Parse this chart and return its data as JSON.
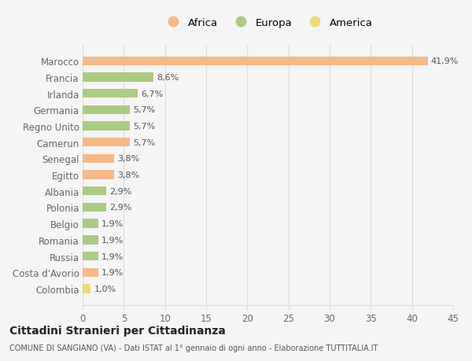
{
  "categories": [
    "Marocco",
    "Francia",
    "Irlanda",
    "Germania",
    "Regno Unito",
    "Camerun",
    "Senegal",
    "Egitto",
    "Albania",
    "Polonia",
    "Belgio",
    "Romania",
    "Russia",
    "Costa d'Avorio",
    "Colombia"
  ],
  "values": [
    41.9,
    8.6,
    6.7,
    5.7,
    5.7,
    5.7,
    3.8,
    3.8,
    2.9,
    2.9,
    1.9,
    1.9,
    1.9,
    1.9,
    1.0
  ],
  "labels": [
    "41,9%",
    "8,6%",
    "6,7%",
    "5,7%",
    "5,7%",
    "5,7%",
    "3,8%",
    "3,8%",
    "2,9%",
    "2,9%",
    "1,9%",
    "1,9%",
    "1,9%",
    "1,9%",
    "1,0%"
  ],
  "continent": [
    "Africa",
    "Europa",
    "Europa",
    "Europa",
    "Europa",
    "Africa",
    "Africa",
    "Africa",
    "Europa",
    "Europa",
    "Europa",
    "Europa",
    "Europa",
    "Africa",
    "America"
  ],
  "colors": {
    "Africa": "#F5B887",
    "Europa": "#ABCA82",
    "America": "#EDD97A"
  },
  "xlim": [
    0,
    45
  ],
  "xticks": [
    0,
    5,
    10,
    15,
    20,
    25,
    30,
    35,
    40,
    45
  ],
  "title": "Cittadini Stranieri per Cittadinanza",
  "subtitle": "COMUNE DI SANGIANO (VA) - Dati ISTAT al 1° gennaio di ogni anno - Elaborazione TUTTITALIA.IT",
  "background_color": "#f5f5f5",
  "plot_bg_color": "#f5f5f5",
  "grid_color": "#dddddd",
  "bar_height": 0.55,
  "label_fontsize": 8.0,
  "ytick_fontsize": 8.5,
  "xtick_fontsize": 8.5,
  "legend_fontsize": 9.5,
  "label_color": "#555555",
  "tick_color": "#666666"
}
